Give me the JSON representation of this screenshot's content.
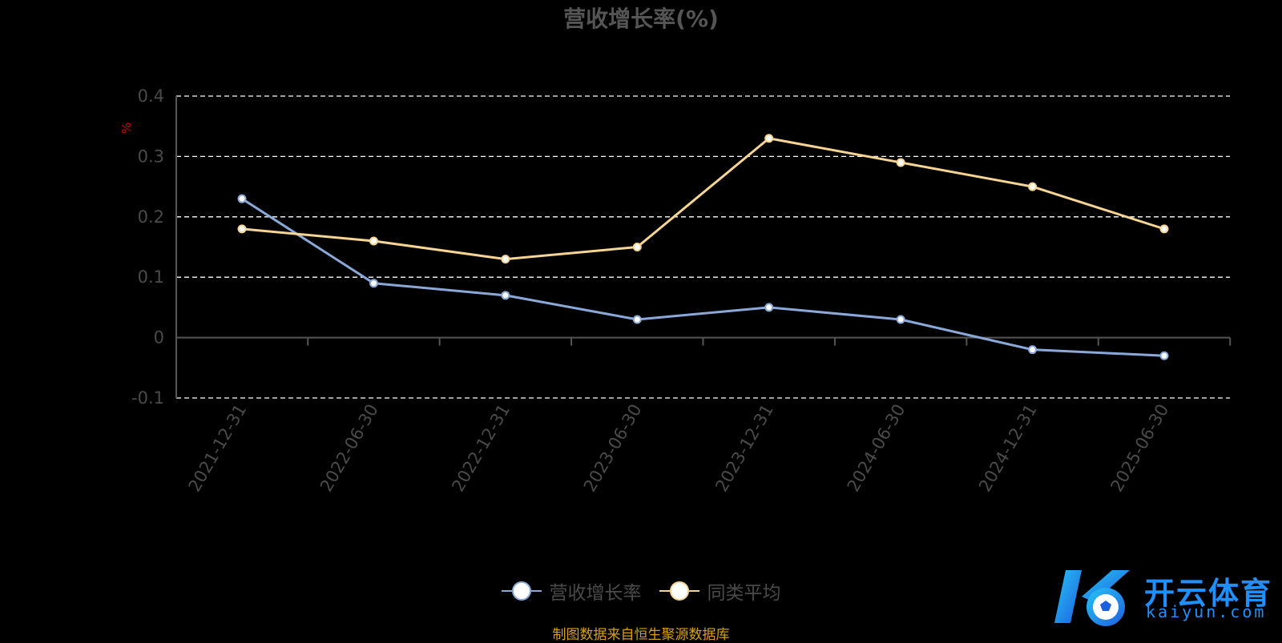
{
  "title": "营收增长率(%)",
  "unit_label": "%",
  "source_note": "制图数据来自恒生聚源数据库",
  "watermark": {
    "main": "开云体育",
    "sub": "kaiyun.com"
  },
  "colors": {
    "background": "#000000",
    "series_revenue": "#8aa8d8",
    "series_peer": "#f5d494",
    "grid": "#ffffff",
    "axis": "#555555",
    "title": "#555555",
    "source": "#d4a017",
    "unit": "#cc0000"
  },
  "legend": [
    {
      "label": "营收增长率",
      "color": "#8aa8d8"
    },
    {
      "label": "同类平均",
      "color": "#f5d494"
    }
  ],
  "chart_data": {
    "type": "line",
    "title": "营收增长率(%)",
    "ylabel": "%",
    "xlabel": "",
    "x": [
      "2021-12-31",
      "2022-06-30",
      "2022-12-31",
      "2023-06-30",
      "2023-12-31",
      "2024-06-30",
      "2024-12-31",
      "2025-06-30"
    ],
    "ylim": [
      -0.1,
      0.4
    ],
    "yticks": [
      "0.4",
      "0.3",
      "0.2",
      "0.1",
      "0",
      "-0.1"
    ],
    "ytick_values": [
      0.4,
      0.3,
      0.2,
      0.1,
      0,
      -0.1
    ],
    "grid": "horizontal dashed",
    "legend_position": "bottom",
    "series": [
      {
        "name": "营收增长率",
        "values": [
          0.23,
          0.09,
          0.07,
          0.03,
          0.05,
          0.03,
          -0.02,
          -0.03
        ]
      },
      {
        "name": "同类平均",
        "values": [
          0.18,
          0.16,
          0.13,
          0.15,
          0.33,
          0.29,
          0.25,
          0.18
        ]
      }
    ]
  }
}
